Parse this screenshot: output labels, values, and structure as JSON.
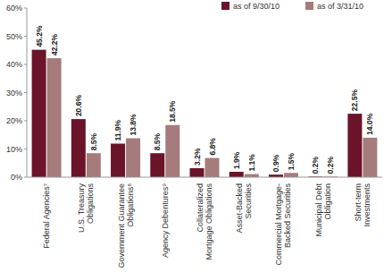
{
  "chart_data": {
    "type": "bar",
    "categories": [
      "Federal Agencies⁷",
      "U.S. Treasury\nObligations",
      "Government Guarantee\nObligations⁸",
      "Agency Debentures⁹",
      "Collateralized\nMortgage Obligations",
      "Asset-Backed\nSecurities",
      "Commercial Mortgage-\nBacked Securities",
      "Municipal Debt\nObligation",
      "Short-term\nInvestments"
    ],
    "series": [
      {
        "name": "as of 9/30/10",
        "color": "#6b1429",
        "values": [
          45.2,
          20.6,
          11.9,
          8.5,
          3.2,
          1.9,
          0.9,
          0.2,
          22.5
        ],
        "value_labels": [
          "45.2%",
          "20.6%",
          "11.9%",
          "8.5%",
          "3.2%",
          "1.9%",
          "0.9%",
          "0.2%",
          "22.5%"
        ]
      },
      {
        "name": "as of 3/31/10",
        "color": "#a67b7b",
        "values": [
          42.2,
          8.5,
          13.8,
          18.5,
          6.8,
          1.1,
          1.5,
          0.2,
          14.0
        ],
        "value_labels": [
          "42.2%",
          "8.5%",
          "13.8%",
          "18.5%",
          "6.8%",
          "1.1%",
          "1.5%",
          "0.2%",
          "14.0%"
        ]
      }
    ],
    "ylim": [
      0,
      60
    ],
    "yticks": [
      {
        "value": 0,
        "label": "0%"
      },
      {
        "value": 10,
        "label": "10%"
      },
      {
        "value": 20,
        "label": "20%"
      },
      {
        "value": 30,
        "label": "30%"
      },
      {
        "value": 40,
        "label": "40%"
      },
      {
        "value": 50,
        "label": "50%"
      },
      {
        "value": 60,
        "label": "60%"
      }
    ],
    "grid": false,
    "legend": "top-right",
    "data_labels": true
  }
}
